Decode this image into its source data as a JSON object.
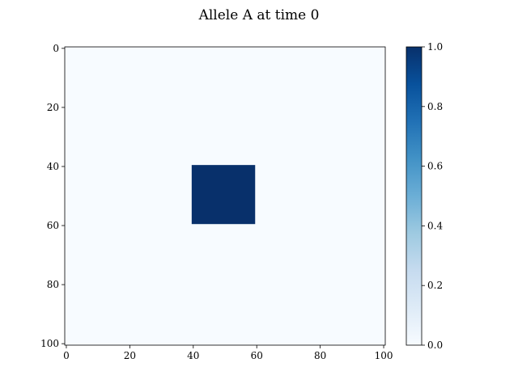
{
  "chart_data": {
    "type": "heatmap",
    "title": "Allele A at time 0",
    "xlabel": "",
    "ylabel": "",
    "grid_shape": [
      101,
      101
    ],
    "xlim": [
      -0.5,
      100.5
    ],
    "ylim": [
      100.5,
      -0.5
    ],
    "x_ticks": [
      0,
      20,
      40,
      60,
      80,
      100
    ],
    "y_ticks": [
      0,
      20,
      40,
      60,
      80,
      100
    ],
    "background_value": 0.0,
    "regions": [
      {
        "rows": [
          40,
          59
        ],
        "cols": [
          40,
          59
        ],
        "value": 1.0
      }
    ],
    "colormap": "Blues",
    "colorbar": {
      "range": [
        0.0,
        1.0
      ],
      "ticks": [
        "0.0",
        "0.2",
        "0.4",
        "0.6",
        "0.8",
        "1.0"
      ],
      "color_low": "#f7fbff",
      "color_high": "#08306b"
    },
    "grid": false
  }
}
